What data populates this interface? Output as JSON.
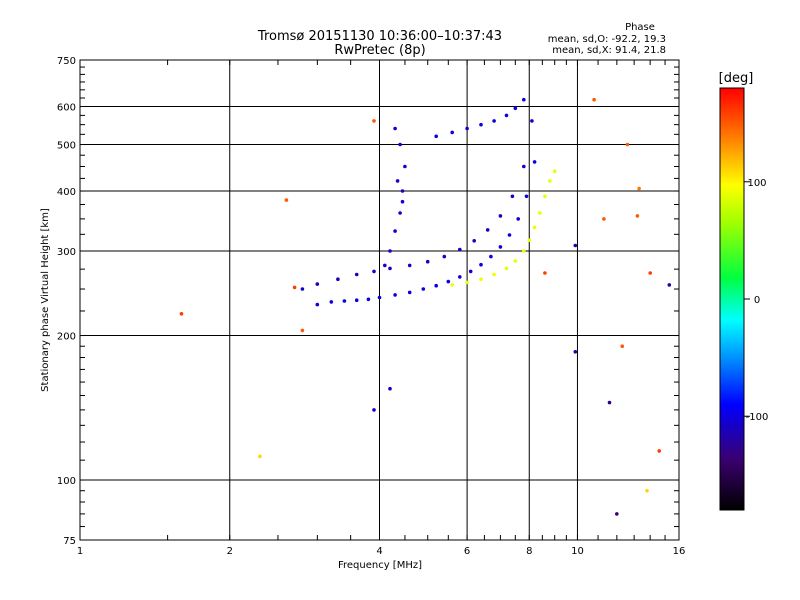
{
  "chart_data": {
    "type": "scatter",
    "title": "Tromsø 20151130 10:36:00–10:37:43",
    "subtitle": "RwPretec (8p)",
    "xlabel": "Frequency [MHz]",
    "ylabel": "Stationary phase Virtual Height [km]",
    "x_scale": "log",
    "y_scale": "log",
    "xlim": [
      1,
      16
    ],
    "ylim": [
      75,
      750
    ],
    "grid": true,
    "x_ticks": [
      1,
      2,
      4,
      6,
      8,
      10,
      16
    ],
    "x_tick_labels": [
      "1",
      "2",
      "4",
      "6",
      "8",
      "10",
      "16"
    ],
    "y_ticks": [
      75,
      100,
      200,
      300,
      400,
      500,
      600,
      750
    ],
    "y_tick_labels": [
      "75",
      "100",
      "200",
      "300",
      "400",
      "500",
      "600",
      "750"
    ],
    "stats": {
      "heading": "Phase",
      "line_o": "mean, sd,O: -92.2, 19.3",
      "line_x": "mean, sd,X:  91.4, 21.8"
    },
    "colorbar": {
      "unit_label": "[deg]",
      "range": [
        -180,
        180
      ],
      "ticks": [
        100,
        0,
        -100
      ],
      "tick_labels": [
        "100",
        "0",
        "-100"
      ]
    },
    "series": [
      {
        "component": "O-mode trace (lower branch, ~-100 deg)",
        "x": [
          3.0,
          3.2,
          3.4,
          3.6,
          3.8,
          4.0,
          4.3,
          4.6,
          4.9,
          5.2,
          5.5,
          5.8,
          6.1,
          6.4,
          6.7,
          7.0,
          7.3,
          7.6,
          7.9,
          8.2
        ],
        "y": [
          232,
          235,
          236,
          237,
          238,
          240,
          243,
          246,
          250,
          254,
          259,
          265,
          272,
          281,
          292,
          306,
          324,
          350,
          390,
          460
        ],
        "phase": -100
      },
      {
        "component": "O-mode trace (upper branch, ~-110 deg)",
        "x": [
          2.8,
          3.0,
          3.3,
          3.6,
          3.9,
          4.2,
          4.6,
          5.0,
          5.4,
          5.8,
          6.2,
          6.6,
          7.0,
          7.4,
          7.8,
          8.1
        ],
        "y": [
          250,
          256,
          262,
          268,
          272,
          276,
          280,
          285,
          292,
          302,
          315,
          332,
          355,
          390,
          450,
          560
        ],
        "phase": -110
      },
      {
        "component": "Spread near 4.4 MHz (~-105 deg)",
        "x": [
          4.1,
          4.2,
          4.3,
          4.4,
          4.45,
          4.5,
          4.4,
          4.3,
          4.35,
          4.45
        ],
        "y": [
          280,
          300,
          330,
          360,
          400,
          450,
          500,
          540,
          420,
          380
        ],
        "phase": -105
      },
      {
        "component": "High-altitude arc (~-100 deg)",
        "x": [
          5.2,
          5.6,
          6.0,
          6.4,
          6.8,
          7.2,
          7.5,
          7.8
        ],
        "y": [
          520,
          530,
          540,
          550,
          560,
          575,
          595,
          620
        ],
        "phase": -100
      },
      {
        "component": "X-mode trace (~90 deg)",
        "x": [
          5.6,
          6.0,
          6.4,
          6.8,
          7.2,
          7.5,
          7.8,
          8.0,
          8.2,
          8.4,
          8.6,
          8.8,
          9.0
        ],
        "y": [
          255,
          258,
          262,
          268,
          276,
          286,
          300,
          316,
          336,
          360,
          390,
          420,
          440
        ],
        "phase": 90
      },
      {
        "component": "Scattered points",
        "x": [
          1.6,
          2.3,
          2.6,
          2.7,
          2.8,
          3.9,
          3.9,
          4.2,
          8.6,
          9.9,
          9.9,
          10.8,
          11.3,
          11.6,
          12.0,
          12.3,
          12.6,
          13.2,
          13.3,
          13.8,
          14.0,
          14.6,
          15.3
        ],
        "y": [
          222,
          112,
          383,
          252,
          205,
          560,
          140,
          155,
          270,
          185,
          308,
          620,
          350,
          145,
          85,
          190,
          500,
          355,
          405,
          95,
          270,
          115,
          255
        ],
        "phase": [
          160,
          110,
          150,
          160,
          150,
          150,
          -105,
          -110,
          160,
          -120,
          -115,
          150,
          150,
          -125,
          -135,
          150,
          150,
          150,
          140,
          110,
          160,
          160,
          -120
        ]
      }
    ]
  }
}
